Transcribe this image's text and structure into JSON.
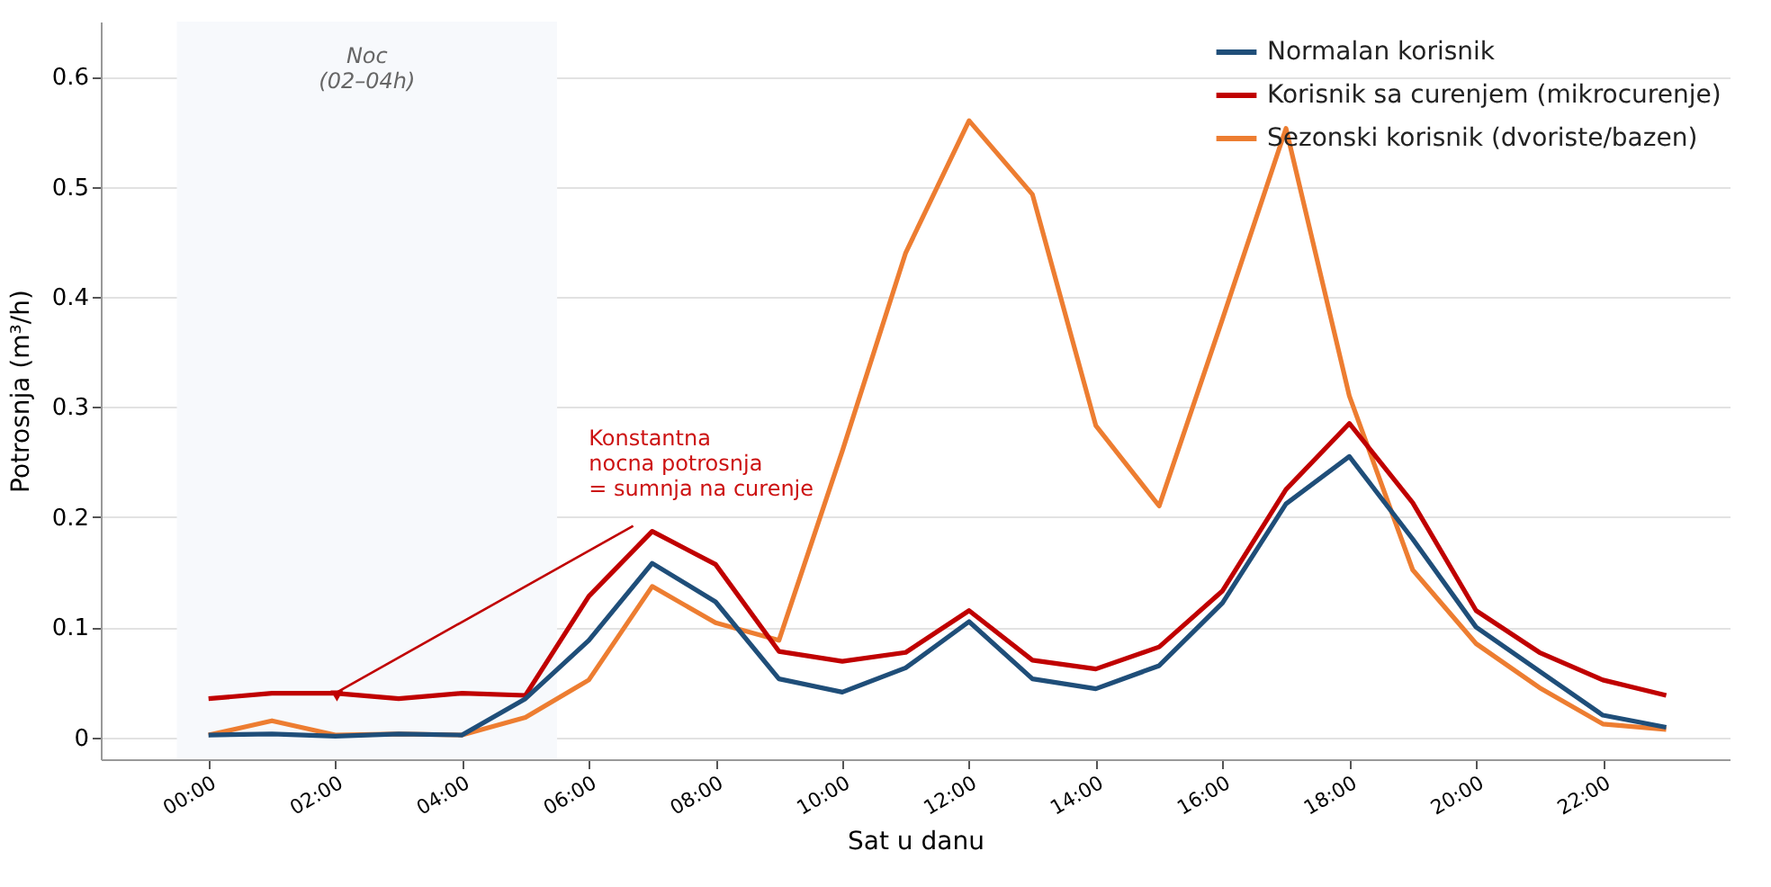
{
  "chart_data": {
    "type": "line",
    "xlabel": "Sat u danu",
    "ylabel": "Potrosnja (m³/h)",
    "x": [
      0,
      1,
      2,
      3,
      4,
      5,
      6,
      7,
      8,
      9,
      10,
      11,
      12,
      13,
      14,
      15,
      16,
      17,
      18,
      19,
      20,
      21,
      22,
      23
    ],
    "series": [
      {
        "name": "Normalan korisnik",
        "color": "#1f4e79",
        "values": [
          0.002,
          0.003,
          0.001,
          0.003,
          0.002,
          0.035,
          0.088,
          0.158,
          0.123,
          0.053,
          0.041,
          0.063,
          0.105,
          0.053,
          0.044,
          0.065,
          0.122,
          0.212,
          0.255,
          0.18,
          0.1,
          0.06,
          0.02,
          0.009
        ]
      },
      {
        "name": "Korisnik sa curenjem (mikrocurenje)",
        "color": "#c00000",
        "values": [
          0.035,
          0.04,
          0.04,
          0.035,
          0.04,
          0.038,
          0.128,
          0.187,
          0.157,
          0.078,
          0.069,
          0.077,
          0.115,
          0.07,
          0.062,
          0.082,
          0.133,
          0.225,
          0.285,
          0.213,
          0.115,
          0.077,
          0.052,
          0.038
        ]
      },
      {
        "name": "Sezonski korisnik (dvoriste/bazen)",
        "color": "#ed7d31",
        "values": [
          0.002,
          0.015,
          0.002,
          0.003,
          0.002,
          0.018,
          0.052,
          0.137,
          0.104,
          0.088,
          0.26,
          0.44,
          0.56,
          0.493,
          0.283,
          0.21,
          0.38,
          0.553,
          0.31,
          0.152,
          0.085,
          0.045,
          0.012,
          0.007
        ]
      }
    ],
    "xlim": [
      -1.7,
      24
    ],
    "ylim": [
      -0.02,
      0.65
    ],
    "xticks": [
      {
        "value": 0,
        "label": "00:00"
      },
      {
        "value": 2,
        "label": "02:00"
      },
      {
        "value": 4,
        "label": "04:00"
      },
      {
        "value": 6,
        "label": "06:00"
      },
      {
        "value": 8,
        "label": "08:00"
      },
      {
        "value": 10,
        "label": "10:00"
      },
      {
        "value": 12,
        "label": "12:00"
      },
      {
        "value": 14,
        "label": "14:00"
      },
      {
        "value": 16,
        "label": "16:00"
      },
      {
        "value": 18,
        "label": "18:00"
      },
      {
        "value": 20,
        "label": "20:00"
      },
      {
        "value": 22,
        "label": "22:00"
      }
    ],
    "yticks": [
      0.0,
      0.1,
      0.2,
      0.3,
      0.4,
      0.5,
      0.6
    ],
    "bands": [
      {
        "axis": "x",
        "from": -0.5,
        "to": 5.5,
        "label": "Noc\n(02–04h)",
        "color": "#f7f9fc"
      }
    ],
    "annotations": [
      {
        "text": "Konstantna\nnocna potrosnja\n= sumnja na curenje",
        "x": 2,
        "y": 0.04
      }
    ],
    "grid": "y",
    "legend": "top right",
    "marker": "none",
    "line_style": "solid"
  }
}
